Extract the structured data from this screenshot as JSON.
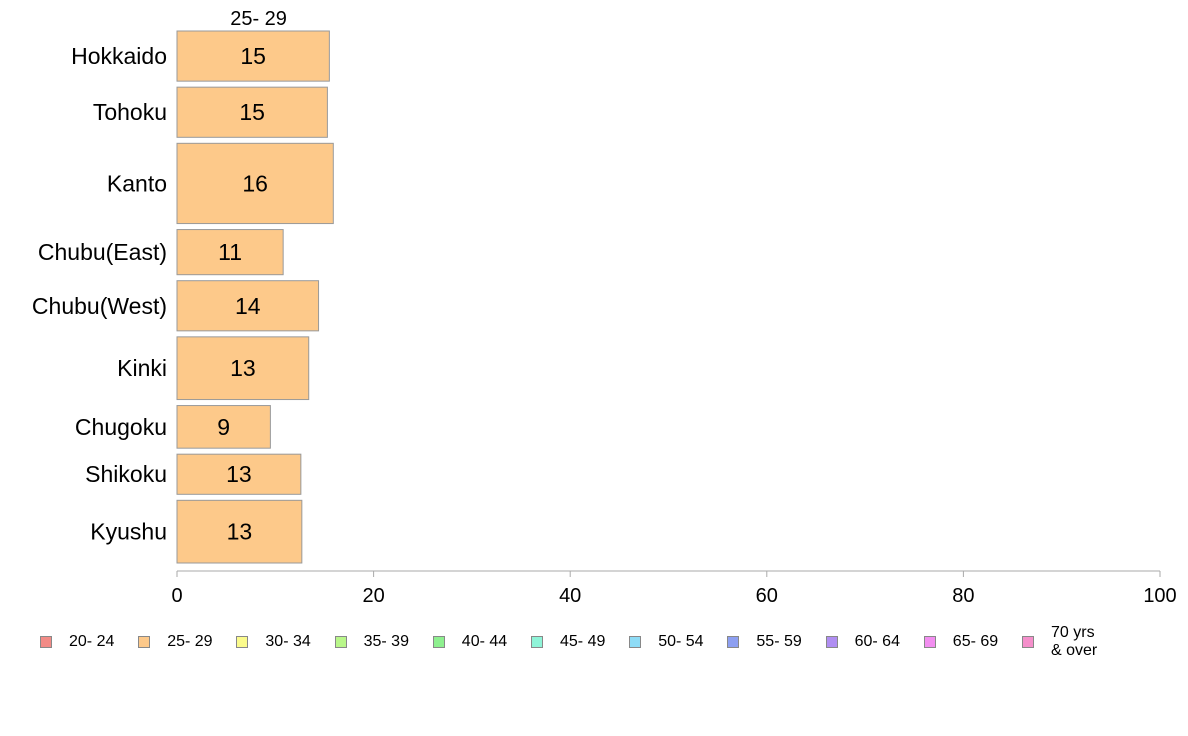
{
  "chart_data": {
    "type": "bar",
    "orientation": "horizontal",
    "title": "25- 29",
    "categories": [
      "Hokkaido",
      "Tohoku",
      "Kanto",
      "Chubu(East)",
      "Chubu(West)",
      "Kinki",
      "Chugoku",
      "Shikoku",
      "Kyushu"
    ],
    "series": [
      {
        "name": "25- 29",
        "values": [
          15.5,
          15.3,
          15.9,
          10.8,
          14.4,
          13.4,
          9.5,
          12.6,
          12.7
        ],
        "labels": [
          "15",
          "15",
          "16",
          "11",
          "14",
          "13",
          "9",
          "13",
          "13"
        ]
      }
    ],
    "category_weights": [
      1,
      1,
      1.6,
      0.9,
      1,
      1.25,
      0.85,
      0.8,
      1.25
    ],
    "xlim": [
      0,
      100
    ],
    "xticks": [
      0,
      20,
      40,
      60,
      80,
      100
    ],
    "xlabel": "",
    "ylabel": "",
    "grid": false,
    "legend_position": "bottom",
    "legend": [
      {
        "label": "20- 24",
        "color": "#f28b86"
      },
      {
        "label": "25- 29",
        "color": "#fdc98a"
      },
      {
        "label": "30- 34",
        "color": "#fbfb8c"
      },
      {
        "label": "35- 39",
        "color": "#b9f78a"
      },
      {
        "label": "40- 44",
        "color": "#8ef08f"
      },
      {
        "label": "45- 49",
        "color": "#8ff4d8"
      },
      {
        "label": "50- 54",
        "color": "#8edcf6"
      },
      {
        "label": "55- 59",
        "color": "#8d9ff1"
      },
      {
        "label": "60- 64",
        "color": "#b08ef2"
      },
      {
        "label": "65- 69",
        "color": "#f28ef0"
      },
      {
        "label": "70 yrs\n& over",
        "color": "#f58fcb"
      }
    ],
    "bar_color": "#fdc98a",
    "bar_border": "#999999",
    "axis_color": "#aaaaaa"
  }
}
